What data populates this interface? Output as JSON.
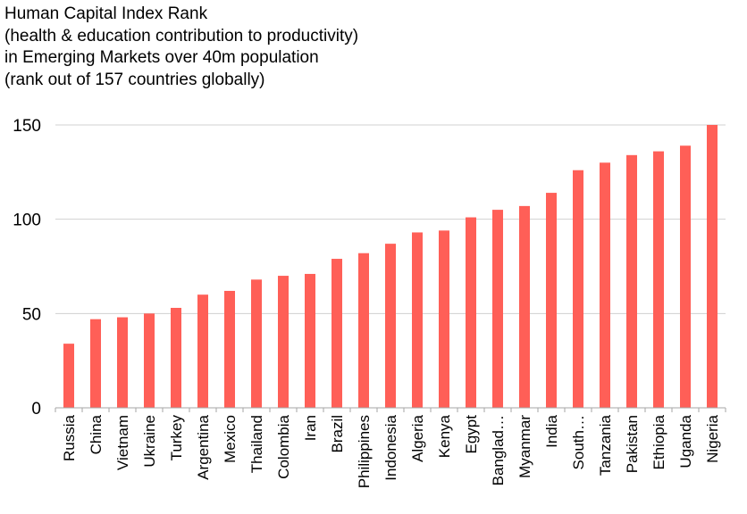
{
  "chart_data": {
    "type": "bar",
    "title_lines": [
      "Human  Capital Index Rank",
      "(health & education contribution to productivity)",
      "in Emerging  Markets over 40m population",
      "(rank out of 157 countries globally)"
    ],
    "categories": [
      "Russia",
      "China",
      "Vietnam",
      "Ukraine",
      "Turkey",
      "Argentina",
      "Mexico",
      "Thailand",
      "Colombia",
      "Iran",
      "Brazil",
      "Philippines",
      "Indonesia",
      "Algeria",
      "Kenya",
      "Egypt",
      "Banglad…",
      "Myanmar",
      "India",
      "South…",
      "Tanzania",
      "Pakistan",
      "Ethiopia",
      "Uganda",
      "Nigeria"
    ],
    "values": [
      34,
      47,
      48,
      50,
      53,
      60,
      62,
      68,
      70,
      71,
      79,
      82,
      87,
      93,
      94,
      101,
      105,
      107,
      114,
      126,
      130,
      134,
      136,
      139,
      150
    ],
    "ylim": [
      0,
      150
    ],
    "yticks": [
      "0",
      "50",
      "100",
      "150"
    ],
    "ytick_values": [
      0,
      50,
      100,
      150
    ],
    "grid": true,
    "bar_color": "#ff5f57",
    "grid_color": "#d0d0d0",
    "axis_color": "#a6a6a6"
  }
}
